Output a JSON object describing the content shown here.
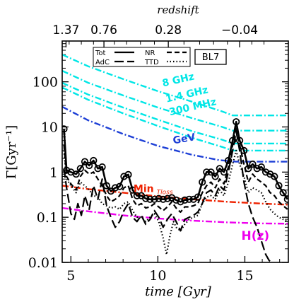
{
  "chart_data": {
    "type": "line",
    "xlabel": "time [Gyr]",
    "ylabel": "Γ[Gyr⁻¹]",
    "top_axis_label": "redshift",
    "y_scale": "log",
    "xlim": [
      4.5,
      17.5
    ],
    "ylim": [
      0.01,
      800
    ],
    "x_ticks": [
      "5",
      "10",
      "15"
    ],
    "y_ticks": [
      "0.01",
      "0.1",
      "1",
      "10",
      "100"
    ],
    "top_ticks": [
      {
        "label": "1.37",
        "time": 4.72
      },
      {
        "label": "0.76",
        "time": 6.9
      },
      {
        "label": "0.28",
        "time": 10.6
      },
      {
        "label": "−0.04",
        "time": 14.7
      }
    ],
    "legend": {
      "badge": "BL7",
      "entries": [
        {
          "label": "Tot",
          "dash": "solid"
        },
        {
          "label": "AdC",
          "dash": "longdash"
        },
        {
          "label": "NR",
          "dash": "dash"
        },
        {
          "label": "TTD",
          "dash": "dot"
        }
      ]
    },
    "reference_lines": [
      {
        "name": "8 GHz",
        "color": "#00e6e6",
        "points": [
          [
            4.5,
            400
          ],
          [
            6,
            220
          ],
          [
            8,
            115
          ],
          [
            10,
            62
          ],
          [
            12,
            36
          ],
          [
            13.7,
            22
          ],
          [
            14.3,
            18
          ],
          [
            17.5,
            18
          ]
        ],
        "label_at": [
          10.3,
          78
        ],
        "label_rotate": 13
      },
      {
        "name": "1.4 GHz",
        "color": "#00e6e6",
        "points": [
          [
            4.5,
            175
          ],
          [
            6,
            95
          ],
          [
            8,
            50
          ],
          [
            10,
            27
          ],
          [
            12,
            15.5
          ],
          [
            13.7,
            10
          ],
          [
            14.3,
            8.3
          ],
          [
            17.5,
            8.3
          ]
        ],
        "label_at": [
          10.5,
          35
        ],
        "label_rotate": 13
      },
      {
        "name": "300 MHz",
        "color": "#00e6e6",
        "points": [
          [
            4.5,
            95
          ],
          [
            6,
            52
          ],
          [
            8,
            27
          ],
          [
            10,
            14.5
          ],
          [
            12,
            8
          ],
          [
            13.7,
            5.2
          ],
          [
            14.3,
            4.3
          ],
          [
            17.5,
            4.3
          ]
        ],
        "label_at": [
          10.7,
          18
        ],
        "label_rotate": 13
      },
      {
        "name": "cyan-extra",
        "color": "#00e6e6",
        "points": [
          [
            4.5,
            75
          ],
          [
            6,
            40
          ],
          [
            8,
            20
          ],
          [
            10,
            10.5
          ],
          [
            12,
            5.7
          ],
          [
            13.7,
            3.6
          ],
          [
            14.3,
            3.0
          ],
          [
            17.5,
            3.0
          ]
        ]
      },
      {
        "name": "GeV",
        "color": "#1d3fd6",
        "points": [
          [
            4.5,
            28
          ],
          [
            6,
            14
          ],
          [
            8,
            7
          ],
          [
            10,
            3.8
          ],
          [
            12,
            2.4
          ],
          [
            13.5,
            1.85
          ],
          [
            14.5,
            1.7
          ],
          [
            17.5,
            1.7
          ]
        ],
        "label_at": [
          10.9,
          4.2
        ],
        "label_rotate": 10
      },
      {
        "name": "Min",
        "sub": "Tloss",
        "color": "#ee2200",
        "points": [
          [
            4.5,
            0.5
          ],
          [
            6,
            0.42
          ],
          [
            8,
            0.35
          ],
          [
            10,
            0.29
          ],
          [
            12,
            0.25
          ],
          [
            14,
            0.22
          ],
          [
            16,
            0.2
          ],
          [
            17.5,
            0.19
          ]
        ],
        "label_at": [
          8.6,
          0.36
        ],
        "label_rotate": 0
      },
      {
        "name": "H(z)",
        "color": "#ee00ee",
        "points": [
          [
            4.5,
            0.16
          ],
          [
            6,
            0.135
          ],
          [
            8,
            0.11
          ],
          [
            10,
            0.094
          ],
          [
            12,
            0.084
          ],
          [
            14,
            0.077
          ],
          [
            16,
            0.073
          ],
          [
            17.5,
            0.072
          ]
        ],
        "label_at": [
          14.8,
          0.032
        ],
        "label_rotate": 0
      }
    ],
    "series": [
      {
        "name": "Tot",
        "dash": "solid",
        "markers": true,
        "points": [
          [
            4.6,
            9
          ],
          [
            4.75,
            1.1
          ],
          [
            5.0,
            1.0
          ],
          [
            5.3,
            0.9
          ],
          [
            5.55,
            1.2
          ],
          [
            5.8,
            1.7
          ],
          [
            6.05,
            1.4
          ],
          [
            6.3,
            1.8
          ],
          [
            6.55,
            1.2
          ],
          [
            6.8,
            1.3
          ],
          [
            7.05,
            0.5
          ],
          [
            7.3,
            0.38
          ],
          [
            7.55,
            0.45
          ],
          [
            7.8,
            0.48
          ],
          [
            8.05,
            0.8
          ],
          [
            8.3,
            0.88
          ],
          [
            8.55,
            0.4
          ],
          [
            8.8,
            0.3
          ],
          [
            9.05,
            0.3
          ],
          [
            9.3,
            0.26
          ],
          [
            9.55,
            0.25
          ],
          [
            9.8,
            0.25
          ],
          [
            10.05,
            0.26
          ],
          [
            10.3,
            0.25
          ],
          [
            10.55,
            0.26
          ],
          [
            10.8,
            0.27
          ],
          [
            11.05,
            0.24
          ],
          [
            11.3,
            0.22
          ],
          [
            11.55,
            0.24
          ],
          [
            11.8,
            0.25
          ],
          [
            12.05,
            0.25
          ],
          [
            12.3,
            0.28
          ],
          [
            12.55,
            0.6
          ],
          [
            12.8,
            1.0
          ],
          [
            13.05,
            1.0
          ],
          [
            13.3,
            0.8
          ],
          [
            13.55,
            1.2
          ],
          [
            13.8,
            1.0
          ],
          [
            14.05,
            1.8
          ],
          [
            14.3,
            5
          ],
          [
            14.5,
            13
          ],
          [
            14.7,
            5
          ],
          [
            14.95,
            3
          ],
          [
            15.2,
            1.2
          ],
          [
            15.45,
            1.5
          ],
          [
            15.7,
            1.2
          ],
          [
            15.95,
            1.3
          ],
          [
            16.2,
            1.0
          ],
          [
            16.45,
            0.9
          ],
          [
            16.7,
            0.8
          ],
          [
            16.95,
            0.5
          ],
          [
            17.2,
            0.35
          ],
          [
            17.45,
            0.25
          ]
        ]
      },
      {
        "name": "NR",
        "dash": "dash",
        "points": [
          [
            4.6,
            4
          ],
          [
            4.75,
            0.8
          ],
          [
            5.0,
            0.55
          ],
          [
            5.3,
            0.4
          ],
          [
            5.55,
            0.8
          ],
          [
            5.8,
            1.1
          ],
          [
            6.05,
            0.9
          ],
          [
            6.3,
            1.0
          ],
          [
            6.55,
            0.7
          ],
          [
            6.8,
            0.5
          ],
          [
            7.05,
            0.3
          ],
          [
            7.3,
            0.22
          ],
          [
            7.55,
            0.25
          ],
          [
            7.8,
            0.3
          ],
          [
            8.05,
            0.45
          ],
          [
            8.3,
            0.5
          ],
          [
            8.55,
            0.25
          ],
          [
            8.8,
            0.18
          ],
          [
            9.05,
            0.2
          ],
          [
            9.3,
            0.16
          ],
          [
            9.55,
            0.17
          ],
          [
            9.8,
            0.2
          ],
          [
            10.05,
            0.17
          ],
          [
            10.3,
            0.14
          ],
          [
            10.55,
            0.17
          ],
          [
            10.8,
            0.22
          ],
          [
            11.05,
            0.16
          ],
          [
            11.3,
            0.13
          ],
          [
            11.55,
            0.17
          ],
          [
            11.8,
            0.17
          ],
          [
            12.05,
            0.18
          ],
          [
            12.3,
            0.2
          ],
          [
            12.55,
            0.35
          ],
          [
            12.8,
            0.5
          ],
          [
            13.05,
            0.6
          ],
          [
            13.3,
            0.45
          ],
          [
            13.55,
            0.7
          ],
          [
            13.8,
            0.55
          ],
          [
            14.05,
            1.3
          ],
          [
            14.3,
            4
          ],
          [
            14.5,
            10
          ],
          [
            14.7,
            4
          ],
          [
            14.95,
            1.5
          ],
          [
            15.2,
            0.6
          ],
          [
            15.45,
            0.9
          ],
          [
            15.7,
            0.7
          ],
          [
            15.95,
            0.6
          ],
          [
            16.2,
            0.5
          ],
          [
            16.45,
            0.35
          ],
          [
            16.7,
            0.3
          ],
          [
            16.95,
            0.22
          ],
          [
            17.2,
            0.18
          ],
          [
            17.45,
            0.15
          ]
        ]
      },
      {
        "name": "AdC",
        "dash": "longdash",
        "points": [
          [
            4.6,
            1.2
          ],
          [
            4.75,
            0.45
          ],
          [
            5.0,
            0.12
          ],
          [
            5.2,
            0.09
          ],
          [
            5.4,
            0.2
          ],
          [
            5.6,
            0.11
          ],
          [
            5.8,
            0.3
          ],
          [
            6.05,
            0.15
          ],
          [
            6.3,
            0.5
          ],
          [
            6.55,
            0.25
          ],
          [
            6.8,
            0.7
          ],
          [
            7.05,
            0.18
          ],
          [
            7.3,
            0.1
          ],
          [
            7.55,
            0.06
          ],
          [
            7.8,
            0.08
          ],
          [
            8.05,
            0.14
          ],
          [
            8.3,
            0.2
          ],
          [
            8.55,
            0.1
          ],
          [
            8.8,
            0.08
          ],
          [
            9.05,
            0.11
          ],
          [
            9.3,
            0.07
          ],
          [
            9.55,
            0.09
          ],
          [
            9.8,
            0.14
          ],
          [
            10.05,
            0.1
          ],
          [
            10.3,
            0.06
          ],
          [
            10.55,
            0.09
          ],
          [
            10.8,
            0.12
          ],
          [
            11.05,
            0.08
          ],
          [
            11.3,
            0.05
          ],
          [
            11.55,
            0.09
          ],
          [
            11.8,
            0.1
          ],
          [
            12.05,
            0.11
          ],
          [
            12.3,
            0.13
          ],
          [
            12.55,
            0.2
          ],
          [
            12.8,
            0.35
          ],
          [
            13.05,
            0.4
          ],
          [
            13.3,
            0.3
          ],
          [
            13.55,
            0.5
          ],
          [
            13.8,
            0.4
          ],
          [
            14.05,
            1.0
          ],
          [
            14.3,
            3
          ],
          [
            14.5,
            8
          ],
          [
            14.7,
            3
          ],
          [
            14.95,
            0.6
          ],
          [
            15.2,
            0.2
          ],
          [
            15.45,
            0.1
          ],
          [
            15.7,
            0.06
          ],
          [
            15.95,
            0.03
          ],
          [
            16.2,
            0.015
          ],
          [
            16.4,
            0.011
          ],
          [
            16.55,
            0.01
          ]
        ]
      },
      {
        "name": "TTD",
        "dash": "dot",
        "points": [
          [
            4.6,
            3
          ],
          [
            4.75,
            0.7
          ],
          [
            5.0,
            0.5
          ],
          [
            5.3,
            0.35
          ],
          [
            5.55,
            0.6
          ],
          [
            5.8,
            0.5
          ],
          [
            6.05,
            0.4
          ],
          [
            6.3,
            0.3
          ],
          [
            6.55,
            0.28
          ],
          [
            6.8,
            0.2
          ],
          [
            7.05,
            0.18
          ],
          [
            7.3,
            0.16
          ],
          [
            7.55,
            0.17
          ],
          [
            7.8,
            0.15
          ],
          [
            8.05,
            0.2
          ],
          [
            8.3,
            0.22
          ],
          [
            8.55,
            0.14
          ],
          [
            8.8,
            0.1
          ],
          [
            9.05,
            0.1
          ],
          [
            9.3,
            0.08
          ],
          [
            9.55,
            0.1
          ],
          [
            9.8,
            0.12
          ],
          [
            10.05,
            0.08
          ],
          [
            10.3,
            0.035
          ],
          [
            10.5,
            0.015
          ],
          [
            10.7,
            0.04
          ],
          [
            10.9,
            0.08
          ],
          [
            11.05,
            0.06
          ],
          [
            11.3,
            0.05
          ],
          [
            11.55,
            0.07
          ],
          [
            11.8,
            0.09
          ],
          [
            12.05,
            0.1
          ],
          [
            12.3,
            0.11
          ],
          [
            12.55,
            0.2
          ],
          [
            12.8,
            0.28
          ],
          [
            13.05,
            0.3
          ],
          [
            13.3,
            0.25
          ],
          [
            13.55,
            0.4
          ],
          [
            13.8,
            0.3
          ],
          [
            14.05,
            0.6
          ],
          [
            14.3,
            1.5
          ],
          [
            14.5,
            3
          ],
          [
            14.7,
            1.5
          ],
          [
            14.95,
            0.8
          ],
          [
            15.2,
            0.35
          ],
          [
            15.45,
            0.45
          ],
          [
            15.7,
            0.4
          ],
          [
            15.95,
            0.35
          ],
          [
            16.2,
            0.22
          ],
          [
            16.45,
            0.15
          ],
          [
            16.7,
            0.12
          ],
          [
            16.95,
            0.1
          ],
          [
            17.2,
            0.09
          ],
          [
            17.45,
            0.08
          ]
        ]
      }
    ]
  }
}
